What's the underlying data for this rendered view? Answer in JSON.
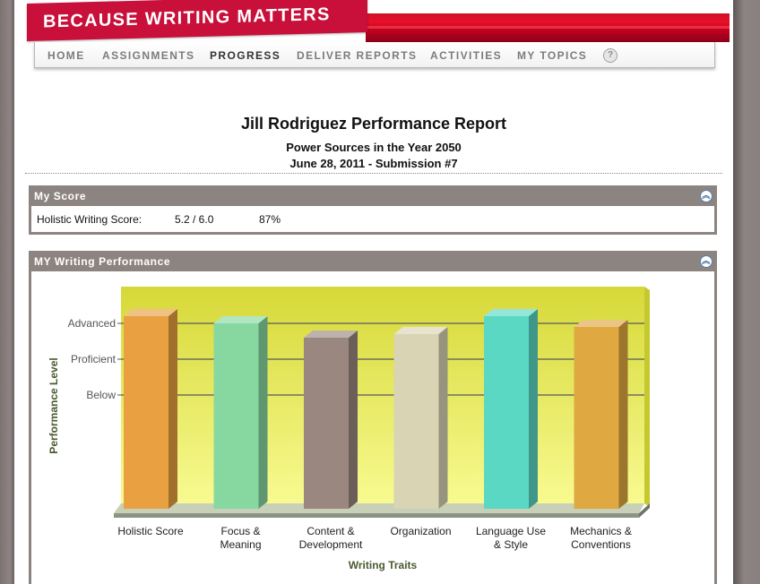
{
  "header": {
    "logo_text": "BECAUSE WRITING MATTERS",
    "nav": [
      "HOME",
      "ASSIGNMENTS",
      "PROGRESS",
      "DELIVER REPORTS",
      "ACTIVITIES",
      "MY TOPICS"
    ],
    "active_nav": "PROGRESS",
    "help_label": "?"
  },
  "report": {
    "title": "Jill Rodriguez Performance Report",
    "topic": "Power Sources in the Year 2050",
    "date_line": "June 28, 2011 - Submission #7"
  },
  "my_score": {
    "title": "My Score",
    "label": "Holistic Writing Score:",
    "score": "5.2 / 6.0",
    "percent": "87%"
  },
  "performance": {
    "title": "MY Writing Performance"
  },
  "colors": {
    "brand_red": "#c8103a",
    "panel_gray": "#8c8480"
  },
  "chart_data": {
    "type": "bar",
    "categories": [
      "Holistic Score",
      "Focus & Meaning",
      "Content & Development",
      "Organization",
      "Language Use & Style",
      "Mechanics & Conventions"
    ],
    "category_lines": [
      [
        "Holistic Score"
      ],
      [
        "Focus &",
        "Meaning"
      ],
      [
        "Content &",
        "Development"
      ],
      [
        "Organization"
      ],
      [
        "Language Use",
        "& Style"
      ],
      [
        "Mechanics &",
        "Conventions"
      ]
    ],
    "values": [
      5.2,
      5.0,
      4.6,
      4.7,
      5.2,
      4.9
    ],
    "bar_colors": [
      "#e8a040",
      "#86d8a0",
      "#9a8880",
      "#d8d4b4",
      "#5ad8c4",
      "#e0a840"
    ],
    "y_ticks": [
      {
        "label": "Advanced",
        "value": 5
      },
      {
        "label": "Proficient",
        "value": 4
      },
      {
        "label": "Below",
        "value": 3
      }
    ],
    "ylim": [
      0,
      6
    ],
    "xlabel": "Writing Traits",
    "ylabel": "Performance Level",
    "grid": true
  }
}
